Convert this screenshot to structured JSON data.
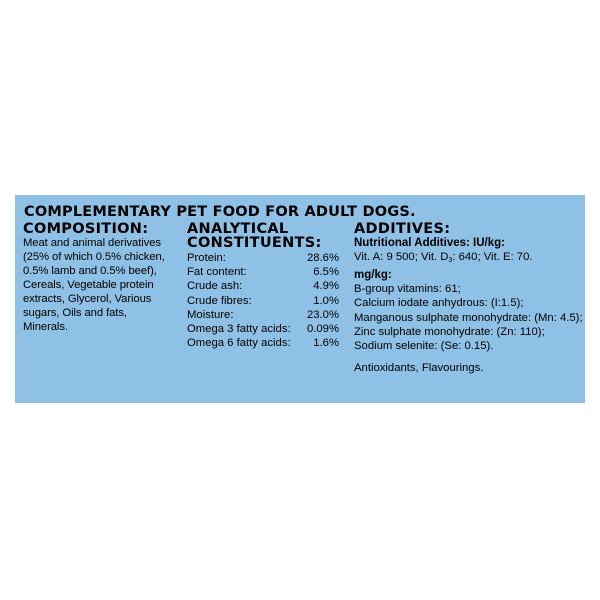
{
  "headline": "COMPLEMENTARY PET FOOD FOR ADULT DOGS.",
  "colors": {
    "panel_background": "#8ec1e5",
    "text": "#000000",
    "page_background": "#ffffff"
  },
  "composition": {
    "heading": "COMPOSITION:",
    "lines": [
      "Meat and animal derivatives",
      "(25% of which 0.5% chicken,",
      "0.5% lamb and 0.5% beef),",
      "Cereals, Vegetable protein",
      "extracts, Glycerol, Various",
      "sugars, Oils and fats,",
      "Minerals."
    ]
  },
  "analytical": {
    "heading_line1": "ANALYTICAL",
    "heading_line2": "CONSTITUENTS:",
    "rows": [
      {
        "label": "Protein:",
        "value": "28.6%"
      },
      {
        "label": "Fat content:",
        "value": "6.5%"
      },
      {
        "label": "Crude ash:",
        "value": "4.9%"
      },
      {
        "label": "Crude fibres:",
        "value": "1.0%"
      },
      {
        "label": "Moisture:",
        "value": "23.0%"
      },
      {
        "label": "Omega 3 fatty acids:",
        "value": "0.09%"
      },
      {
        "label": "Omega 6 fatty acids:",
        "value": "1.6%"
      }
    ]
  },
  "additives": {
    "heading": "ADDITIVES:",
    "nutritional_heading": "Nutritional Additives: IU/kg:",
    "vitamins_prefix": "Vit. A: 9 500; Vit. D",
    "vitamins_subscript": "3",
    "vitamins_suffix": ": 640; Vit. E: 70.",
    "mgkg_heading": "mg/kg:",
    "mgkg_lines": [
      "B-group vitamins: 61;",
      "Calcium iodate anhydrous: (I:1.5);",
      "Manganous sulphate monohydrate: (Mn: 4.5);",
      "Zinc sulphate monohydrate: (Zn: 110);",
      "Sodium selenite: (Se: 0.15)."
    ],
    "footer": "Antioxidants, Flavourings."
  }
}
